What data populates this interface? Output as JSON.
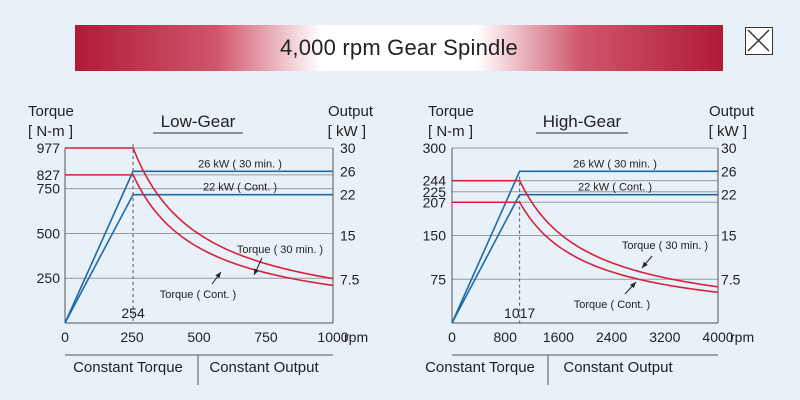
{
  "title": "4,000 rpm Gear Spindle",
  "close_icon": "close-x-icon",
  "colors": {
    "torque": "#d6213a",
    "output": "#1f6aa8",
    "grid": "#9a9a9a"
  },
  "chart_data": [
    {
      "type": "line",
      "title": "Low-Gear",
      "ylabel_left": "Torque",
      "ylabel_left_unit": "[ N-m ]",
      "ylabel_right": "Output",
      "ylabel_right_unit": "[ kW ]",
      "xlabel": "rpm",
      "xlim": [
        0,
        1000
      ],
      "x_ticks": [
        "0",
        "250",
        "500",
        "750",
        "1000"
      ],
      "x_marker": 254,
      "x_marker_label": "254",
      "y_left_ticks": [
        "977",
        "827",
        "750",
        "500",
        "250"
      ],
      "y_left_values": [
        977,
        827,
        750,
        500,
        250
      ],
      "y_right_ticks": [
        "30",
        "26",
        "22",
        "15",
        "7.5"
      ],
      "y_right_values": [
        30,
        26,
        22,
        15,
        7.5
      ],
      "ylim": [
        0,
        977
      ],
      "output_max": 30,
      "series": [
        {
          "name": "26 kW ( 30 min. )",
          "kind": "output",
          "power": 26,
          "base": 254
        },
        {
          "name": "22 kW ( Cont. )",
          "kind": "output",
          "power": 22,
          "base": 254
        },
        {
          "name": "Torque ( 30 min. )",
          "kind": "torque",
          "torque": 977,
          "base": 254,
          "end_value": 241
        },
        {
          "name": "Torque ( Cont. )",
          "kind": "torque",
          "torque": 827,
          "base": 254,
          "end_value": 210
        }
      ],
      "regions": [
        "Constant Torque",
        "Constant Output"
      ]
    },
    {
      "type": "line",
      "title": "High-Gear",
      "ylabel_left": "Torque",
      "ylabel_left_unit": "[ N-m ]",
      "ylabel_right": "Output",
      "ylabel_right_unit": "[ kW ]",
      "xlabel": "rpm",
      "xlim": [
        0,
        4000
      ],
      "x_ticks": [
        "0",
        "800",
        "1600",
        "2400",
        "3200",
        "4000"
      ],
      "x_marker": 1017,
      "x_marker_label": "1017",
      "y_left_ticks": [
        "300",
        "244",
        "225",
        "207",
        "150",
        "75"
      ],
      "y_left_values": [
        300,
        244,
        225,
        207,
        150,
        75
      ],
      "y_right_ticks": [
        "30",
        "26",
        "22",
        "15",
        "7.5"
      ],
      "y_right_values": [
        30,
        26,
        22,
        15,
        7.5
      ],
      "ylim": [
        0,
        300
      ],
      "output_max": 30,
      "series": [
        {
          "name": "26 kW ( 30 min. )",
          "kind": "output",
          "power": 26,
          "base": 1017
        },
        {
          "name": "22 kW ( Cont. )",
          "kind": "output",
          "power": 22,
          "base": 1017
        },
        {
          "name": "Torque ( 30 min. )",
          "kind": "torque",
          "torque": 244,
          "base": 1017,
          "end_value": 62
        },
        {
          "name": "Torque ( Cont. )",
          "kind": "torque",
          "torque": 207,
          "base": 1017,
          "end_value": 53
        }
      ],
      "regions": [
        "Constant Torque",
        "Constant Output"
      ]
    }
  ]
}
